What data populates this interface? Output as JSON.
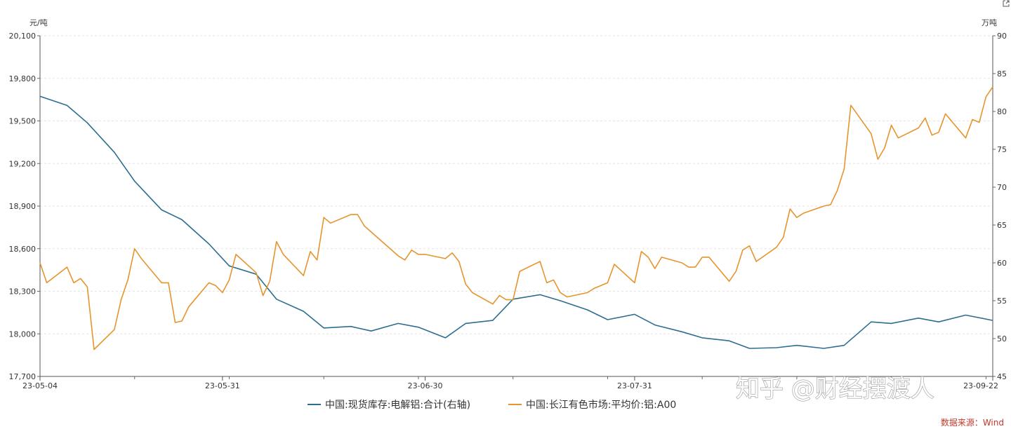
{
  "chart_data": {
    "type": "line",
    "x_ticks": [
      "23-05-04",
      "23-05-31",
      "23-06-30",
      "23-07-31",
      "23-09-22"
    ],
    "x_range": [
      "2023-05-04",
      "2023-09-22"
    ],
    "left_axis": {
      "unit": "元/吨",
      "ticks": [
        "20,100",
        "19,800",
        "19,500",
        "19,200",
        "18,900",
        "18,600",
        "18,300",
        "18,000",
        "17,700"
      ],
      "ylim": [
        17700,
        20100
      ]
    },
    "right_axis": {
      "unit": "万吨",
      "ticks": [
        "90",
        "85",
        "80",
        "75",
        "70",
        "65",
        "60",
        "55",
        "50",
        "45"
      ],
      "ylim": [
        45,
        90
      ]
    },
    "grid": true,
    "legend_position": "bottom",
    "series": [
      {
        "name": "中国:现货库存:电解铝:合计(右轴)",
        "axis": "right",
        "color": "#2c6e8f",
        "x": [
          "2023-05-04",
          "2023-05-08",
          "2023-05-11",
          "2023-05-15",
          "2023-05-18",
          "2023-05-22",
          "2023-05-25",
          "2023-05-29",
          "2023-06-01",
          "2023-06-05",
          "2023-06-08",
          "2023-06-12",
          "2023-06-15",
          "2023-06-19",
          "2023-06-22",
          "2023-06-26",
          "2023-06-29",
          "2023-07-03",
          "2023-07-06",
          "2023-07-10",
          "2023-07-13",
          "2023-07-17",
          "2023-07-20",
          "2023-07-24",
          "2023-07-27",
          "2023-07-31",
          "2023-08-03",
          "2023-08-07",
          "2023-08-10",
          "2023-08-14",
          "2023-08-17",
          "2023-08-21",
          "2023-08-24",
          "2023-08-28",
          "2023-08-31",
          "2023-09-04",
          "2023-09-07",
          "2023-09-11",
          "2023-09-14",
          "2023-09-18",
          "2023-09-22"
        ],
        "values": [
          82.0,
          80.8,
          78.5,
          74.6,
          70.8,
          67.0,
          65.7,
          62.5,
          59.6,
          58.5,
          55.2,
          53.6,
          51.4,
          51.6,
          51.0,
          52.0,
          51.5,
          50.1,
          52.0,
          52.4,
          55.2,
          55.8,
          55.0,
          53.8,
          52.5,
          53.2,
          51.8,
          50.9,
          50.1,
          49.7,
          48.7,
          48.8,
          49.1,
          48.7,
          49.1,
          52.2,
          52.0,
          52.7,
          52.2,
          53.1,
          52.4
        ]
      },
      {
        "name": "中国:长江有色市场:平均价:铝:A00",
        "axis": "left",
        "color": "#e6942e",
        "x": [
          "2023-05-04",
          "2023-05-05",
          "2023-05-08",
          "2023-05-09",
          "2023-05-10",
          "2023-05-11",
          "2023-05-12",
          "2023-05-15",
          "2023-05-16",
          "2023-05-17",
          "2023-05-18",
          "2023-05-19",
          "2023-05-22",
          "2023-05-23",
          "2023-05-24",
          "2023-05-25",
          "2023-05-26",
          "2023-05-29",
          "2023-05-30",
          "2023-05-31",
          "2023-06-01",
          "2023-06-02",
          "2023-06-05",
          "2023-06-06",
          "2023-06-07",
          "2023-06-08",
          "2023-06-09",
          "2023-06-12",
          "2023-06-13",
          "2023-06-14",
          "2023-06-15",
          "2023-06-16",
          "2023-06-19",
          "2023-06-20",
          "2023-06-21",
          "2023-06-26",
          "2023-06-27",
          "2023-06-28",
          "2023-06-29",
          "2023-06-30",
          "2023-07-03",
          "2023-07-04",
          "2023-07-05",
          "2023-07-06",
          "2023-07-07",
          "2023-07-10",
          "2023-07-11",
          "2023-07-12",
          "2023-07-13",
          "2023-07-14",
          "2023-07-17",
          "2023-07-18",
          "2023-07-19",
          "2023-07-20",
          "2023-07-21",
          "2023-07-24",
          "2023-07-25",
          "2023-07-26",
          "2023-07-27",
          "2023-07-28",
          "2023-07-31",
          "2023-08-01",
          "2023-08-02",
          "2023-08-03",
          "2023-08-04",
          "2023-08-07",
          "2023-08-08",
          "2023-08-09",
          "2023-08-10",
          "2023-08-11",
          "2023-08-14",
          "2023-08-15",
          "2023-08-16",
          "2023-08-17",
          "2023-08-18",
          "2023-08-21",
          "2023-08-22",
          "2023-08-23",
          "2023-08-24",
          "2023-08-25",
          "2023-08-28",
          "2023-08-29",
          "2023-08-30",
          "2023-08-31",
          "2023-09-01",
          "2023-09-04",
          "2023-09-05",
          "2023-09-06",
          "2023-09-07",
          "2023-09-08",
          "2023-09-11",
          "2023-09-12",
          "2023-09-13",
          "2023-09-14",
          "2023-09-15",
          "2023-09-18",
          "2023-09-19",
          "2023-09-20",
          "2023-09-21",
          "2023-09-22"
        ],
        "values": [
          18500,
          18360,
          18470,
          18360,
          18390,
          18330,
          17890,
          18030,
          18240,
          18380,
          18600,
          18530,
          18360,
          18360,
          18080,
          18090,
          18190,
          18360,
          18340,
          18290,
          18380,
          18560,
          18430,
          18270,
          18370,
          18650,
          18560,
          18410,
          18580,
          18520,
          18820,
          18780,
          18840,
          18840,
          18760,
          18550,
          18520,
          18590,
          18560,
          18560,
          18530,
          18570,
          18510,
          18350,
          18290,
          18210,
          18270,
          18240,
          18240,
          18440,
          18510,
          18360,
          18380,
          18290,
          18260,
          18290,
          18320,
          18340,
          18360,
          18490,
          18360,
          18580,
          18540,
          18460,
          18540,
          18500,
          18470,
          18470,
          18540,
          18540,
          18370,
          18440,
          18590,
          18620,
          18510,
          18610,
          18680,
          18880,
          18820,
          18850,
          18900,
          18910,
          19010,
          19160,
          19610,
          19410,
          19230,
          19310,
          19470,
          19380,
          19450,
          19520,
          19400,
          19420,
          19550,
          19380,
          19510,
          19490,
          19670,
          19740
        ]
      }
    ],
    "source": "数据来源：Wind"
  },
  "watermark": "知乎 @财经摆渡人"
}
